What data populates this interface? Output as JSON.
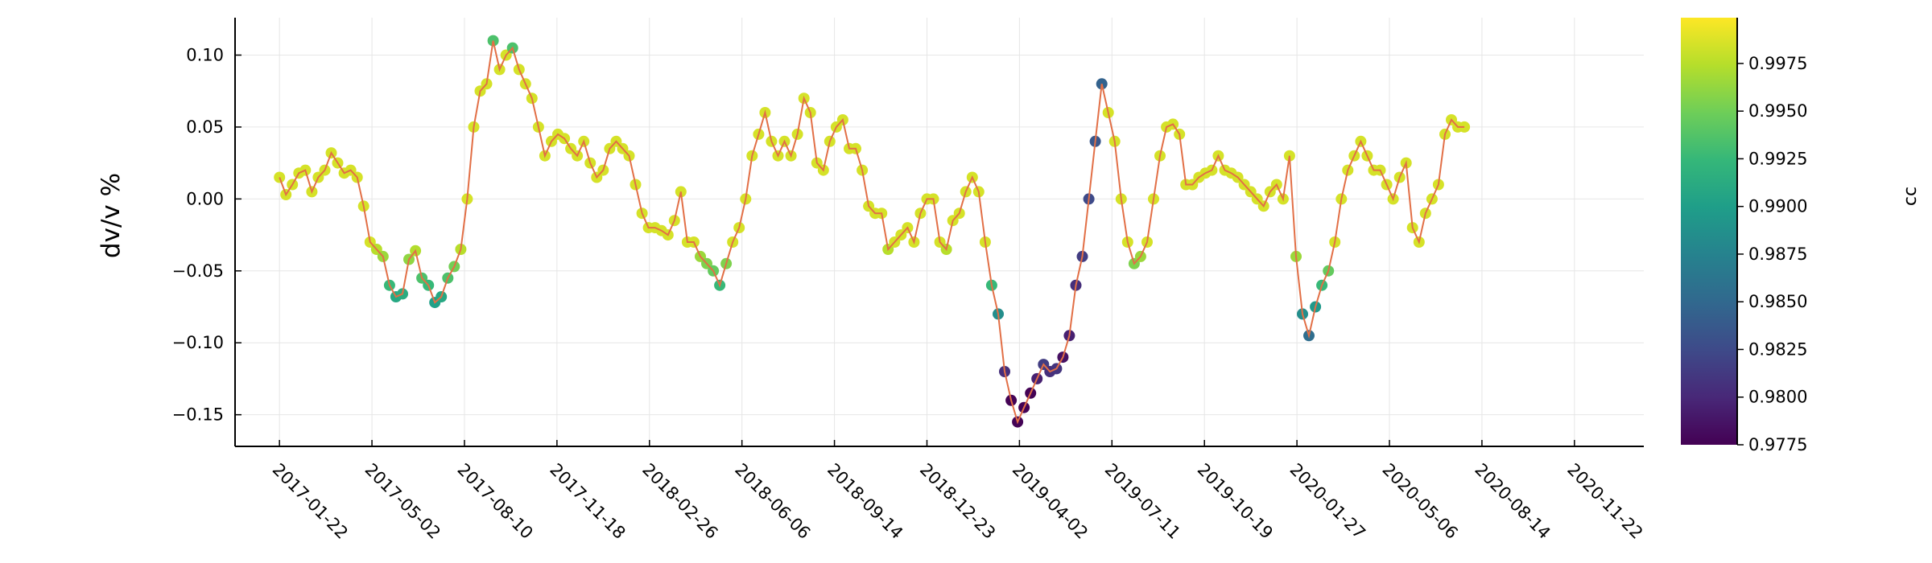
{
  "chart_data": {
    "type": "scatter",
    "title": "",
    "ylabel": "dv/v %",
    "xlabel": "",
    "ylim": [
      -0.172,
      0.126
    ],
    "xlim": [
      "2016-12-05",
      "2021-02-05"
    ],
    "x_ticks": [
      "2017-01-22",
      "2017-05-02",
      "2017-08-10",
      "2017-11-18",
      "2018-02-26",
      "2018-06-06",
      "2018-09-14",
      "2018-12-23",
      "2019-04-02",
      "2019-07-11",
      "2019-10-19",
      "2020-01-27",
      "2020-05-06",
      "2020-08-14",
      "2020-11-22"
    ],
    "y_ticks": [
      "0.10",
      "0.05",
      "0.00",
      "−0.05",
      "−0.10",
      "−0.15"
    ],
    "y_tick_values": [
      0.1,
      0.05,
      0.0,
      -0.05,
      -0.1,
      -0.15
    ],
    "grid": true,
    "line_color": "#e26f46",
    "colorbar": {
      "label": "cc",
      "range": [
        0.9775,
        0.9999
      ],
      "ticks": [
        "0.9775",
        "0.9800",
        "0.9825",
        "0.9850",
        "0.9875",
        "0.9900",
        "0.9925",
        "0.9950",
        "0.9975"
      ],
      "tick_values": [
        0.9775,
        0.98,
        0.9825,
        0.985,
        0.9875,
        0.99,
        0.9925,
        0.995,
        0.9975
      ],
      "colormap": "viridis",
      "stops": [
        "#440154",
        "#482878",
        "#3e4a89",
        "#31688e",
        "#26828e",
        "#1f9e89",
        "#35b779",
        "#6ece58",
        "#b5de2b",
        "#fde725"
      ]
    },
    "series": [
      {
        "x_start": "2017-01-22",
        "step_days": 7,
        "values": [
          0.015,
          0.003,
          0.01,
          0.018,
          0.02,
          0.005,
          0.015,
          0.02,
          0.032,
          0.025,
          0.018,
          0.02,
          0.015,
          -0.005,
          -0.03,
          -0.035,
          -0.04,
          -0.06,
          -0.068,
          -0.066,
          -0.042,
          -0.036,
          -0.055,
          -0.06,
          -0.072,
          -0.068,
          -0.055,
          -0.047,
          -0.035,
          0.0,
          0.05,
          0.075,
          0.08,
          0.11,
          0.09,
          0.1,
          0.105,
          0.09,
          0.08,
          0.07,
          0.05,
          0.03,
          0.04,
          0.045,
          0.042,
          0.035,
          0.03,
          0.04,
          0.025,
          0.015,
          0.02,
          0.035,
          0.04,
          0.035,
          0.03,
          0.01,
          -0.01,
          -0.02,
          -0.02,
          -0.022,
          -0.025,
          -0.015,
          0.005,
          -0.03,
          -0.03,
          -0.04,
          -0.045,
          -0.05,
          -0.06,
          -0.045,
          -0.03,
          -0.02,
          0.0,
          0.03,
          0.045,
          0.06,
          0.04,
          0.03,
          0.04,
          0.03,
          0.045,
          0.07,
          0.06,
          0.025,
          0.02,
          0.04,
          0.05,
          0.055,
          0.035,
          0.035,
          0.02,
          -0.005,
          -0.01,
          -0.01,
          -0.035,
          -0.03,
          -0.025,
          -0.02,
          -0.03,
          -0.01,
          0.0,
          0.0,
          -0.03,
          -0.035,
          -0.015,
          -0.01,
          0.005,
          0.015,
          0.005,
          -0.03,
          -0.06,
          -0.08,
          -0.12,
          -0.14,
          -0.155,
          -0.145,
          -0.135,
          -0.125,
          -0.115,
          -0.12,
          -0.118,
          -0.11,
          -0.095,
          -0.06,
          -0.04,
          0.0,
          0.04,
          0.08,
          0.06,
          0.04,
          0.0,
          -0.03,
          -0.045,
          -0.04,
          -0.03,
          0.0,
          0.03,
          0.05,
          0.052,
          0.045,
          0.01,
          0.01,
          0.015,
          0.018,
          0.02,
          0.03,
          0.02,
          0.018,
          0.015,
          0.01,
          0.005,
          0.0,
          -0.005,
          0.005,
          0.01,
          0.0,
          0.03,
          -0.04,
          -0.08,
          -0.095,
          -0.075,
          -0.06,
          -0.05,
          -0.03,
          0.0,
          0.02,
          0.03,
          0.04,
          0.03,
          0.02,
          0.02,
          0.01,
          0.0,
          0.015,
          0.025,
          -0.02,
          -0.03,
          -0.01,
          0.0,
          0.01,
          0.045,
          0.055,
          0.05,
          0.05
        ]
      }
    ]
  }
}
